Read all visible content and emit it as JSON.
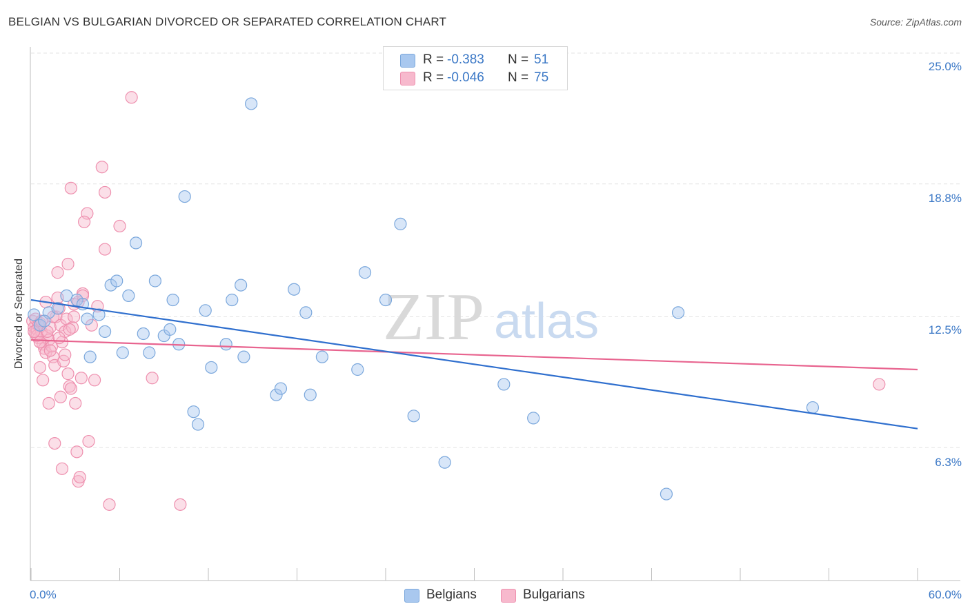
{
  "title": "BELGIAN VS BULGARIAN DIVORCED OR SEPARATED CORRELATION CHART",
  "source": "Source: ZipAtlas.com",
  "watermark": {
    "zip": "ZIP",
    "atlas": "atlas"
  },
  "legend_top": {
    "r_label": "R =",
    "n_label": "N =",
    "belgians": {
      "r": "-0.383",
      "n": "51"
    },
    "bulgarians": {
      "r": "-0.046",
      "n": "75"
    }
  },
  "legend_bottom": {
    "belgians": "Belgians",
    "bulgarians": "Bulgarians"
  },
  "colors": {
    "belgians_fill": "#a9c8ef",
    "belgians_stroke": "#7aa7dc",
    "belgians_line": "#2f6fce",
    "bulgarians_fill": "#f7b9cd",
    "bulgarians_stroke": "#ee8fae",
    "bulgarians_line": "#e8648f",
    "tick_text": "#3b78c6",
    "grid": "#e3e3e3"
  },
  "chart_data": {
    "type": "scatter",
    "title": "BELGIAN VS BULGARIAN DIVORCED OR SEPARATED CORRELATION CHART",
    "xlabel": "",
    "ylabel": "Divorced or Separated",
    "xlim": [
      0,
      60
    ],
    "ylim": [
      0,
      25.7
    ],
    "x_tick_labels": [
      "0.0%",
      "60.0%"
    ],
    "y_ticks": [
      6.3,
      12.5,
      18.8,
      25.0
    ],
    "y_tick_labels": [
      "6.3%",
      "12.5%",
      "18.8%",
      "25.0%"
    ],
    "grid": "horizontal dashed",
    "legend_position": "top-center and bottom-center",
    "series": [
      {
        "name": "Belgians",
        "trend": {
          "x": [
            0,
            60
          ],
          "y": [
            13.3,
            7.2
          ]
        },
        "points": [
          [
            0.2,
            12.6
          ],
          [
            0.6,
            12.1
          ],
          [
            1.2,
            12.7
          ],
          [
            1.8,
            12.9
          ],
          [
            2.4,
            13.5
          ],
          [
            3.1,
            13.3
          ],
          [
            3.5,
            13.1
          ],
          [
            3.8,
            12.4
          ],
          [
            4.0,
            10.6
          ],
          [
            4.6,
            12.6
          ],
          [
            5.0,
            11.8
          ],
          [
            5.4,
            14.0
          ],
          [
            5.8,
            14.2
          ],
          [
            6.2,
            10.8
          ],
          [
            6.6,
            13.5
          ],
          [
            7.1,
            16.0
          ],
          [
            7.6,
            11.7
          ],
          [
            8.0,
            10.8
          ],
          [
            8.4,
            14.2
          ],
          [
            9.0,
            11.6
          ],
          [
            9.4,
            11.9
          ],
          [
            9.6,
            13.3
          ],
          [
            10.0,
            11.2
          ],
          [
            10.4,
            18.2
          ],
          [
            11.0,
            8.0
          ],
          [
            11.3,
            7.4
          ],
          [
            11.8,
            12.8
          ],
          [
            12.2,
            10.1
          ],
          [
            13.2,
            11.2
          ],
          [
            13.6,
            13.3
          ],
          [
            14.2,
            14.0
          ],
          [
            14.4,
            10.6
          ],
          [
            14.9,
            22.6
          ],
          [
            16.6,
            8.8
          ],
          [
            16.9,
            9.1
          ],
          [
            17.8,
            13.8
          ],
          [
            18.6,
            12.7
          ],
          [
            18.9,
            8.8
          ],
          [
            19.7,
            10.6
          ],
          [
            22.1,
            10.0
          ],
          [
            22.6,
            14.6
          ],
          [
            24.0,
            13.3
          ],
          [
            25.0,
            16.9
          ],
          [
            25.9,
            7.8
          ],
          [
            28.0,
            5.6
          ],
          [
            32.0,
            9.3
          ],
          [
            34.0,
            7.7
          ],
          [
            43.0,
            4.1
          ],
          [
            43.8,
            12.7
          ],
          [
            52.9,
            8.2
          ],
          [
            0.9,
            12.3
          ]
        ]
      },
      {
        "name": "Bulgarians",
        "trend": {
          "x": [
            0,
            60
          ],
          "y": [
            11.4,
            10.0
          ]
        },
        "points": [
          [
            0.1,
            12.3
          ],
          [
            0.2,
            12.0
          ],
          [
            0.3,
            11.7
          ],
          [
            0.4,
            11.9
          ],
          [
            0.5,
            11.5
          ],
          [
            0.6,
            12.2
          ],
          [
            0.7,
            11.8
          ],
          [
            0.8,
            11.2
          ],
          [
            0.9,
            11.0
          ],
          [
            1.0,
            10.8
          ],
          [
            1.1,
            11.6
          ],
          [
            1.2,
            11.4
          ],
          [
            1.3,
            12.0
          ],
          [
            1.4,
            11.1
          ],
          [
            1.5,
            10.6
          ],
          [
            1.6,
            10.2
          ],
          [
            1.7,
            12.5
          ],
          [
            1.8,
            13.4
          ],
          [
            1.9,
            12.9
          ],
          [
            2.0,
            12.1
          ],
          [
            2.1,
            11.3
          ],
          [
            2.2,
            10.4
          ],
          [
            2.3,
            11.8
          ],
          [
            2.4,
            12.4
          ],
          [
            2.5,
            9.8
          ],
          [
            2.6,
            9.2
          ],
          [
            2.7,
            9.1
          ],
          [
            2.8,
            12.0
          ],
          [
            2.9,
            13.1
          ],
          [
            3.0,
            8.4
          ],
          [
            3.1,
            6.1
          ],
          [
            3.2,
            4.7
          ],
          [
            3.3,
            4.9
          ],
          [
            3.4,
            9.6
          ],
          [
            3.5,
            13.6
          ],
          [
            3.8,
            17.4
          ],
          [
            3.9,
            6.6
          ],
          [
            4.1,
            12.1
          ],
          [
            4.3,
            9.5
          ],
          [
            4.5,
            13.0
          ],
          [
            4.8,
            19.6
          ],
          [
            5.0,
            15.7
          ],
          [
            5.3,
            3.6
          ],
          [
            6.0,
            16.8
          ],
          [
            6.8,
            22.9
          ],
          [
            8.2,
            9.6
          ],
          [
            10.1,
            3.6
          ],
          [
            3.6,
            17.0
          ],
          [
            2.7,
            18.6
          ],
          [
            5.0,
            18.4
          ],
          [
            2.5,
            15.0
          ],
          [
            1.8,
            14.6
          ],
          [
            1.0,
            13.2
          ],
          [
            0.6,
            10.1
          ],
          [
            0.8,
            9.5
          ],
          [
            1.2,
            8.4
          ],
          [
            2.0,
            8.7
          ],
          [
            1.6,
            6.5
          ],
          [
            2.1,
            5.3
          ],
          [
            0.3,
            12.4
          ],
          [
            0.5,
            12.1
          ],
          [
            0.4,
            11.6
          ],
          [
            0.7,
            12.3
          ],
          [
            1.1,
            11.8
          ],
          [
            1.3,
            10.9
          ],
          [
            1.5,
            12.5
          ],
          [
            1.9,
            11.5
          ],
          [
            2.3,
            10.7
          ],
          [
            2.6,
            11.9
          ],
          [
            2.9,
            12.5
          ],
          [
            3.2,
            13.2
          ],
          [
            3.5,
            13.5
          ],
          [
            0.2,
            11.8
          ],
          [
            0.6,
            11.3
          ],
          [
            57.4,
            9.3
          ]
        ]
      }
    ]
  }
}
